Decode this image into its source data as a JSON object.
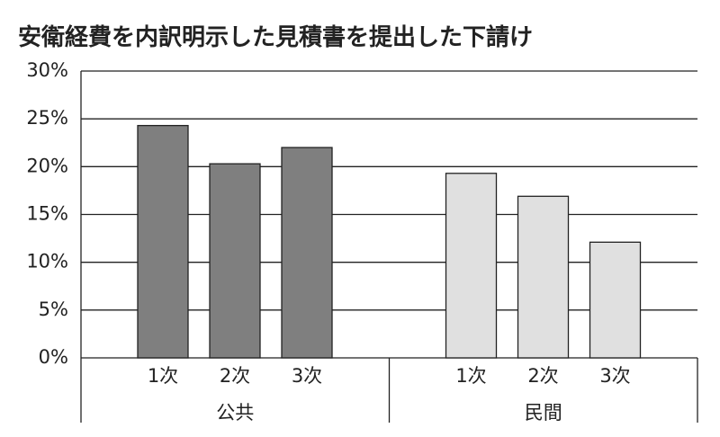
{
  "chart_data": {
    "type": "bar",
    "title": "安衛経費を内訳明示した見積書を提出した下請け",
    "groups": [
      {
        "label": "公共",
        "color": "#7f7f7f",
        "categories": [
          "1次",
          "2次",
          "3次"
        ],
        "values": [
          24.3,
          20.3,
          22.0
        ]
      },
      {
        "label": "民間",
        "color": "#e0e0e0",
        "categories": [
          "1次",
          "2次",
          "3次"
        ],
        "values": [
          19.3,
          16.9,
          12.1
        ]
      }
    ],
    "ylim": [
      0,
      30
    ],
    "yticks": [
      {
        "value": 0,
        "label": "0%"
      },
      {
        "value": 5,
        "label": "5%"
      },
      {
        "value": 10,
        "label": "10%"
      },
      {
        "value": 15,
        "label": "15%"
      },
      {
        "value": 20,
        "label": "20%"
      },
      {
        "value": 25,
        "label": "25%"
      },
      {
        "value": 30,
        "label": "30%"
      }
    ],
    "grid": true
  }
}
